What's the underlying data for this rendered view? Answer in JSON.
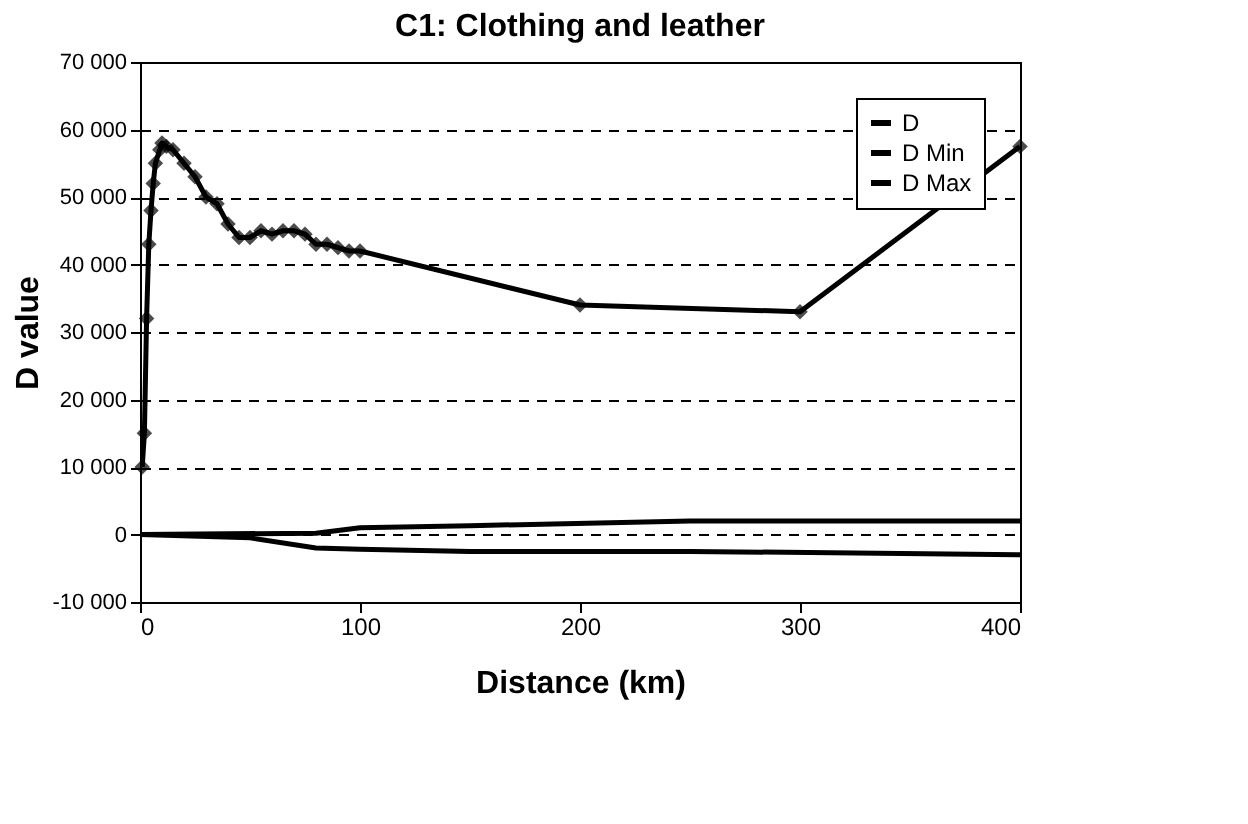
{
  "chart_data": {
    "type": "line",
    "title": "C1: Clothing and leather",
    "xlabel": "Distance (km)",
    "ylabel": "D value",
    "xlim": [
      0,
      400
    ],
    "xticks": [
      0,
      100,
      200,
      300,
      400
    ],
    "ylim": [
      -10000,
      70000
    ],
    "yticks": [
      {
        "value": -10000,
        "label": "-10 000"
      },
      0,
      {
        "value": 10000,
        "label": "10 000"
      },
      {
        "value": 20000,
        "label": "20 000"
      },
      {
        "value": 30000,
        "label": "30 000"
      },
      {
        "value": 40000,
        "label": "40 000"
      },
      {
        "value": 50000,
        "label": "50 000"
      },
      {
        "value": 60000,
        "label": "60 000"
      },
      {
        "value": 70000,
        "label": "70 000"
      }
    ],
    "grid": "y",
    "legend": "top right",
    "series": [
      {
        "name": "D",
        "color": "#000000",
        "marker": "diamond",
        "x": [
          1,
          2,
          3,
          4,
          5,
          6,
          7,
          9,
          10,
          12,
          15,
          20,
          25,
          30,
          35,
          40,
          45,
          50,
          55,
          60,
          65,
          70,
          75,
          80,
          85,
          90,
          95,
          100,
          200,
          300,
          400
        ],
        "values": [
          10000,
          15000,
          32000,
          43000,
          48000,
          52000,
          55000,
          57000,
          58000,
          57500,
          57000,
          55000,
          53000,
          50000,
          49000,
          46000,
          44000,
          44000,
          45000,
          44500,
          45000,
          45000,
          44500,
          43000,
          43000,
          42500,
          42000,
          42000,
          34000,
          33000,
          57500
        ]
      },
      {
        "name": "D Min",
        "color": "#000000",
        "marker": "none",
        "x": [
          0,
          50,
          80,
          100,
          150,
          250,
          400
        ],
        "values": [
          0,
          -500,
          -2000,
          -2200,
          -2500,
          -2500,
          -3000
        ]
      },
      {
        "name": "D Max",
        "color": "#000000",
        "marker": "none",
        "x": [
          0,
          80,
          100,
          150,
          250,
          400
        ],
        "values": [
          0,
          200,
          1000,
          1300,
          2000,
          2000
        ]
      }
    ]
  }
}
